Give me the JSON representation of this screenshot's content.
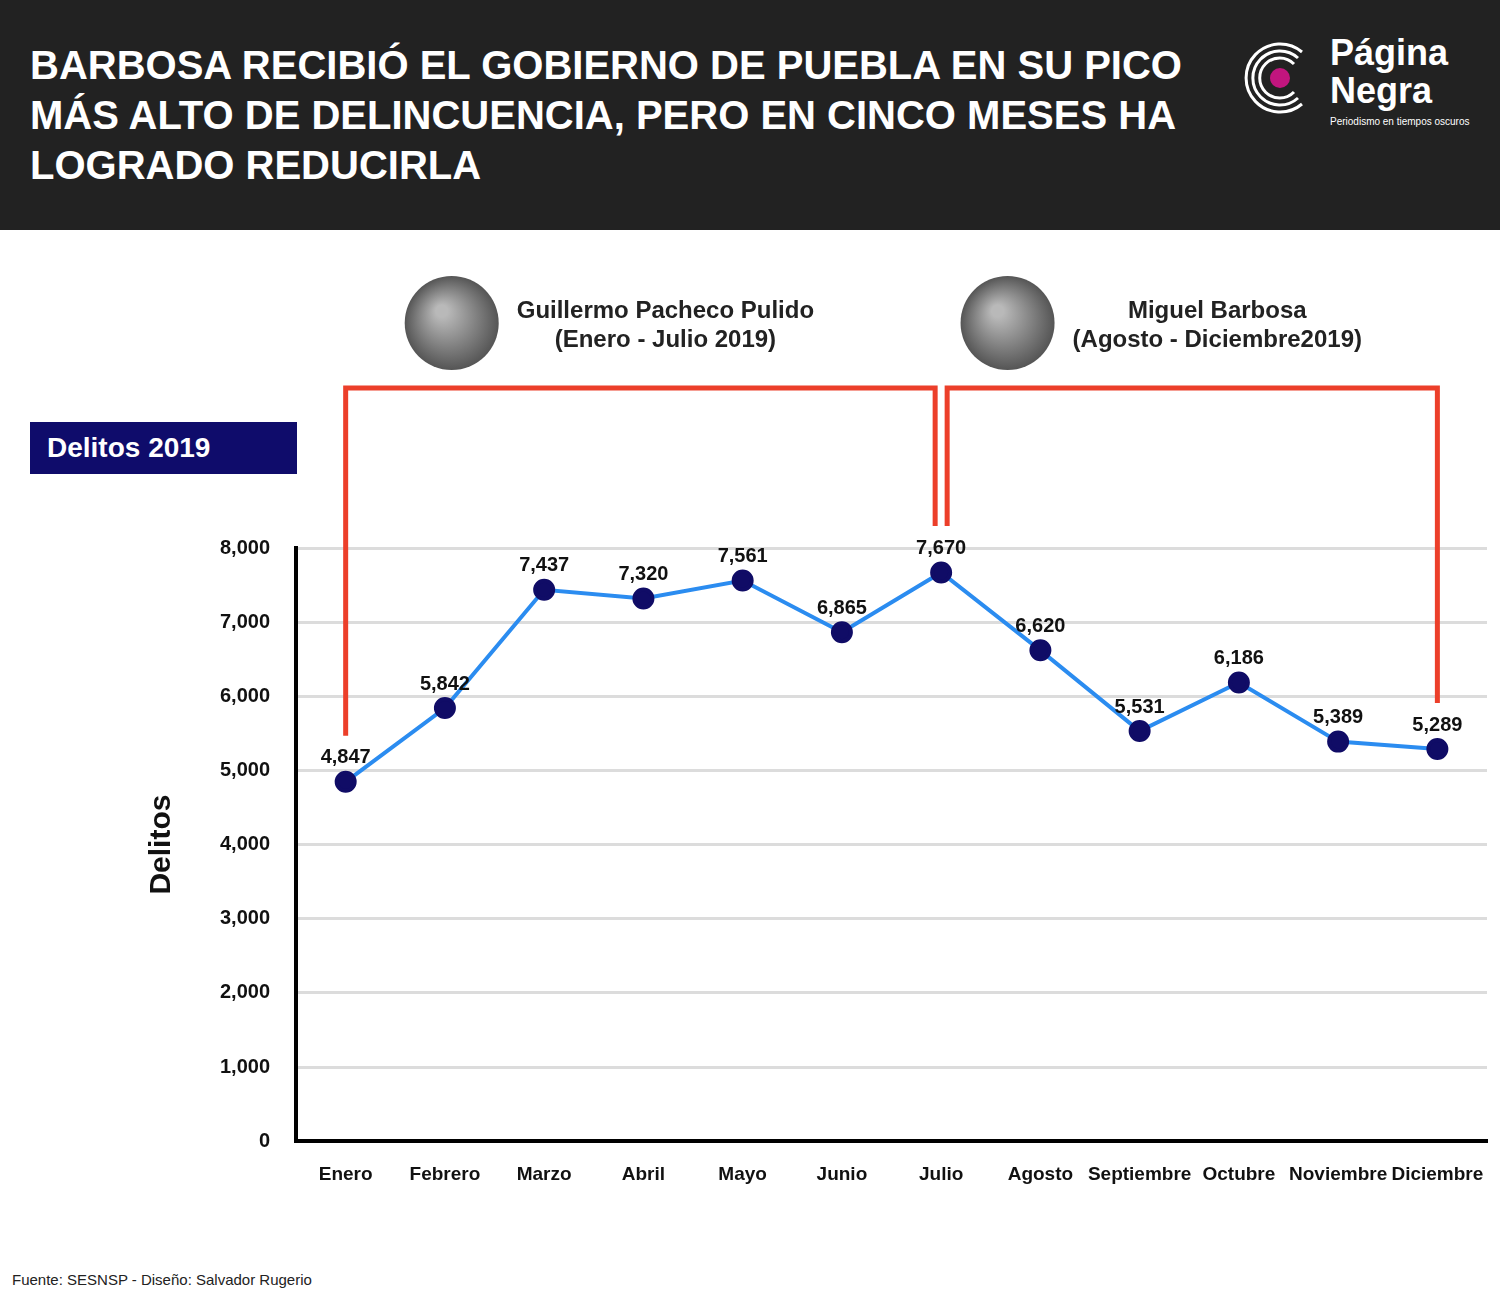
{
  "header": {
    "title": "BARBOSA RECIBIÓ EL GOBIERNO DE PUEBLA EN SU PICO MÁS ALTO DE DELINCUENCIA, PERO EN CINCO MESES HA LOGRADO REDUCIRLA",
    "logo": {
      "name": [
        "Página",
        "Negra"
      ],
      "tagline": "Periodismo en tiempos oscuros"
    }
  },
  "chart_data": {
    "type": "line",
    "title": "Delitos 2019",
    "y_label": "Delitos",
    "categories": [
      "Enero",
      "Febrero",
      "Marzo",
      "Abril",
      "Mayo",
      "Junio",
      "Julio",
      "Agosto",
      "Septiembre",
      "Octubre",
      "Noviembre",
      "Diciembre"
    ],
    "values": [
      4847,
      5842,
      7437,
      7320,
      7561,
      6865,
      7670,
      6620,
      5531,
      6186,
      5389,
      5289
    ],
    "value_labels": [
      "4,847",
      "5,842",
      "7,437",
      "7,320",
      "7,561",
      "6,865",
      "7,670",
      "6,620",
      "5,531",
      "6,186",
      "5,389",
      "5,289"
    ],
    "color": "#2b8cf0",
    "marker": "circle",
    "ylim": [
      0,
      8000
    ],
    "yticks": [
      0,
      {
        "value": 1000,
        "label": "1,000"
      },
      {
        "value": 2000,
        "label": "2,000"
      },
      {
        "value": 3000,
        "label": "3,000"
      },
      {
        "value": 4000,
        "label": "4,000"
      },
      {
        "value": 5000,
        "label": "5,000"
      },
      {
        "value": 6000,
        "label": "6,000"
      },
      {
        "value": 7000,
        "label": "7,000"
      },
      {
        "value": 8000,
        "label": "8,000"
      }
    ],
    "grid": true,
    "data_labels": true,
    "annotations": [
      {
        "text": [
          "Guillermo Pacheco Pulido",
          "(Enero - Julio 2019)"
        ],
        "from": "Enero",
        "to": "Julio"
      },
      {
        "text": [
          "Miguel Barbosa",
          "(Agosto - Diciembre2019)"
        ],
        "from": "Agosto",
        "to": "Diciembre"
      }
    ]
  },
  "source": "Fuente: SESNSP - Diseño: Salvador Rugerio"
}
